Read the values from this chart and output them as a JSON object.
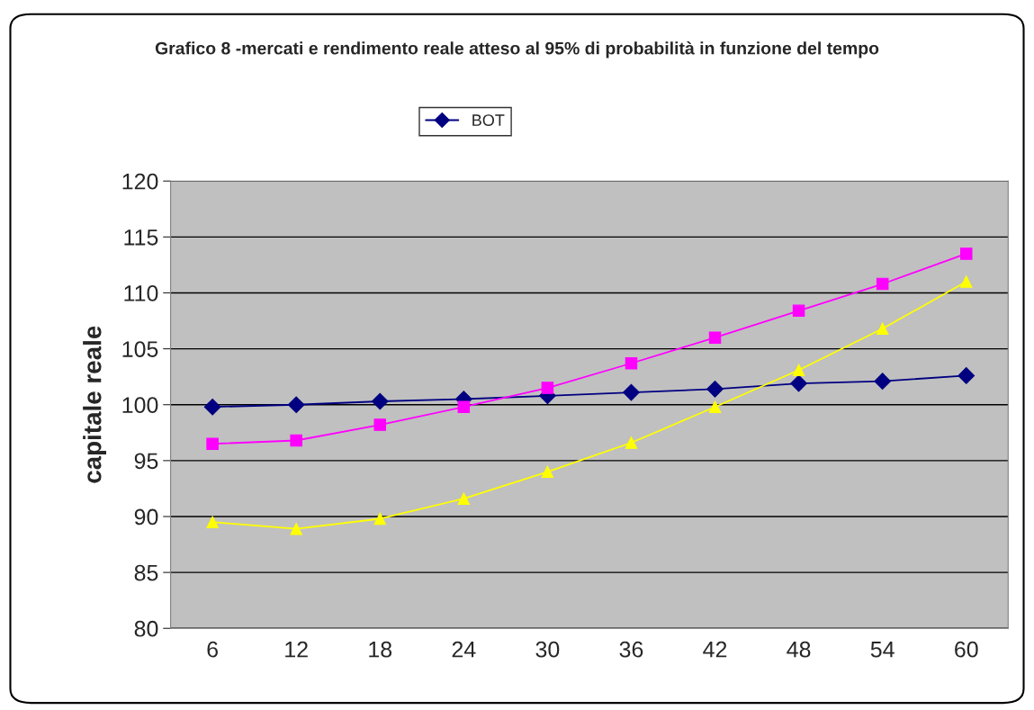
{
  "chart_data": {
    "type": "line",
    "title": "Grafico 8 -mercati e rendimento reale atteso al 95% di probabilità in funzione del tempo",
    "ylabel": "capitale reale",
    "categories": [
      "6",
      "12",
      "18",
      "24",
      "30",
      "36",
      "42",
      "48",
      "54",
      "60"
    ],
    "series": [
      {
        "name": "BOT",
        "color": "#000080",
        "marker": "diamond",
        "values": [
          99.8,
          100.0,
          100.3,
          100.5,
          100.8,
          101.1,
          101.4,
          101.9,
          102.1,
          102.6
        ]
      },
      {
        "color": "#ff00ff",
        "marker": "square",
        "values": [
          96.5,
          96.8,
          98.2,
          99.8,
          101.5,
          103.7,
          106.0,
          108.4,
          110.8,
          113.5
        ]
      },
      {
        "color": "#ffff00",
        "marker": "triangle",
        "values": [
          89.5,
          88.9,
          89.8,
          91.6,
          94.0,
          96.6,
          99.8,
          103.1,
          106.8,
          111.0
        ]
      }
    ],
    "ylim": [
      80,
      120
    ],
    "yticks": [
      80,
      85,
      90,
      95,
      100,
      105,
      110,
      115,
      120
    ],
    "grid": "y",
    "legend": "top"
  }
}
